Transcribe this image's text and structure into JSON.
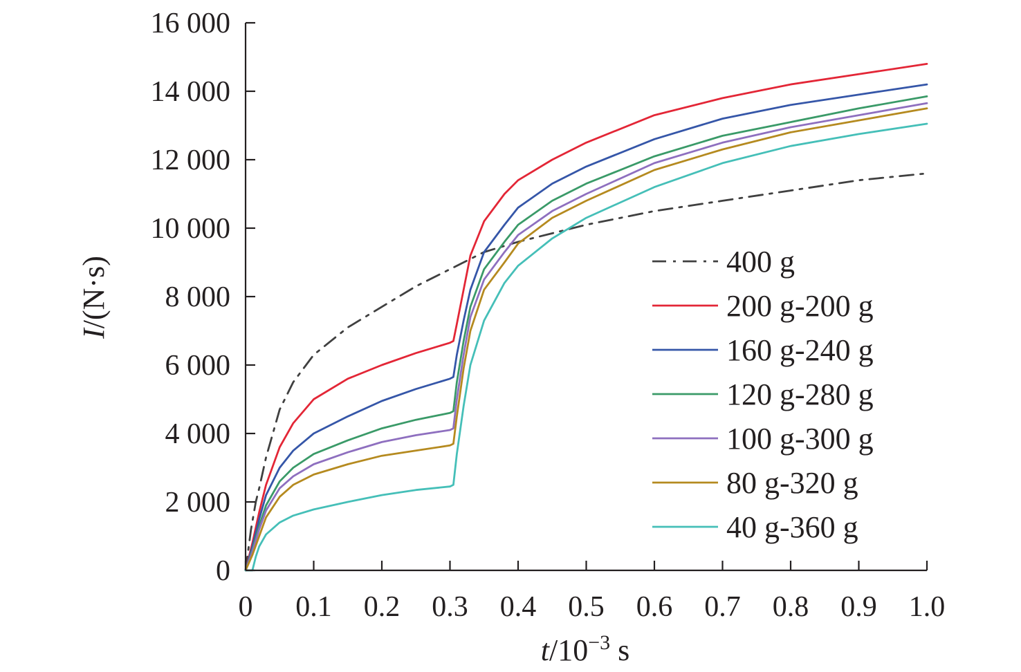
{
  "chart_data": {
    "type": "line",
    "xlabel_prefix": "t",
    "xlabel_rest": "/10",
    "xlabel_exp": "−3",
    "xlabel_unit": " s",
    "ylabel_prefix": "I",
    "ylabel_rest": "/(N·s)",
    "xlim": [
      0,
      1.0
    ],
    "ylim": [
      0,
      16000
    ],
    "x_ticks": [
      0,
      0.1,
      0.2,
      0.3,
      0.4,
      0.5,
      0.6,
      0.7,
      0.8,
      0.9,
      1.0
    ],
    "x_tick_labels": [
      "0",
      "0.1",
      "0.2",
      "0.3",
      "0.4",
      "0.5",
      "0.6",
      "0.7",
      "0.8",
      "0.9",
      "1.0"
    ],
    "y_ticks": [
      0,
      2000,
      4000,
      6000,
      8000,
      10000,
      12000,
      14000,
      16000
    ],
    "y_tick_labels": [
      "0",
      "2 000",
      "4 000",
      "6 000",
      "8 000",
      "10 000",
      "12 000",
      "14 000",
      "16 000"
    ],
    "grid": false,
    "legend_position": "right",
    "series": [
      {
        "name": "400 g",
        "color": "#404040",
        "dash": "dashdot",
        "x": [
          0,
          0.008,
          0.015,
          0.02,
          0.03,
          0.05,
          0.07,
          0.1,
          0.15,
          0.2,
          0.25,
          0.3,
          0.35,
          0.4,
          0.5,
          0.6,
          0.7,
          0.8,
          0.9,
          1.0
        ],
        "y": [
          0,
          1200,
          2000,
          2400,
          3300,
          4700,
          5500,
          6300,
          7100,
          7700,
          8300,
          8800,
          9300,
          9600,
          10100,
          10500,
          10800,
          11100,
          11400,
          11600
        ]
      },
      {
        "name": "200 g-200 g",
        "color": "#e32636",
        "dash": "solid",
        "x": [
          0,
          0.01,
          0.02,
          0.03,
          0.05,
          0.07,
          0.1,
          0.15,
          0.2,
          0.25,
          0.3,
          0.305,
          0.31,
          0.32,
          0.33,
          0.35,
          0.38,
          0.4,
          0.45,
          0.5,
          0.6,
          0.7,
          0.8,
          0.9,
          1.0
        ],
        "y": [
          0,
          800,
          1700,
          2500,
          3600,
          4300,
          5000,
          5600,
          6000,
          6350,
          6650,
          6700,
          7200,
          8200,
          9200,
          10200,
          11000,
          11400,
          12000,
          12500,
          13300,
          13800,
          14200,
          14500,
          14800
        ]
      },
      {
        "name": "160 g-240 g",
        "color": "#3556a8",
        "dash": "solid",
        "x": [
          0,
          0.01,
          0.02,
          0.03,
          0.05,
          0.07,
          0.1,
          0.15,
          0.2,
          0.25,
          0.3,
          0.305,
          0.31,
          0.32,
          0.33,
          0.35,
          0.38,
          0.4,
          0.45,
          0.5,
          0.6,
          0.7,
          0.8,
          0.9,
          1.0
        ],
        "y": [
          0,
          700,
          1500,
          2200,
          3000,
          3500,
          4000,
          4500,
          4950,
          5300,
          5600,
          5650,
          6300,
          7300,
          8200,
          9300,
          10100,
          10600,
          11300,
          11800,
          12600,
          13200,
          13600,
          13900,
          14200
        ]
      },
      {
        "name": "120 g-280 g",
        "color": "#3a9a68",
        "dash": "solid",
        "x": [
          0,
          0.01,
          0.02,
          0.03,
          0.05,
          0.07,
          0.1,
          0.15,
          0.2,
          0.25,
          0.3,
          0.305,
          0.31,
          0.32,
          0.33,
          0.35,
          0.38,
          0.4,
          0.45,
          0.5,
          0.6,
          0.7,
          0.8,
          0.9,
          1.0
        ],
        "y": [
          0,
          600,
          1300,
          1900,
          2600,
          3000,
          3400,
          3800,
          4150,
          4400,
          4600,
          4650,
          5500,
          6700,
          7700,
          8800,
          9600,
          10100,
          10800,
          11300,
          12100,
          12700,
          13100,
          13500,
          13850
        ]
      },
      {
        "name": "100 g-300 g",
        "color": "#8e6fbf",
        "dash": "solid",
        "x": [
          0,
          0.01,
          0.02,
          0.03,
          0.05,
          0.07,
          0.1,
          0.15,
          0.2,
          0.25,
          0.3,
          0.305,
          0.31,
          0.32,
          0.33,
          0.35,
          0.38,
          0.4,
          0.45,
          0.5,
          0.6,
          0.7,
          0.8,
          0.9,
          1.0
        ],
        "y": [
          0,
          550,
          1200,
          1750,
          2400,
          2750,
          3100,
          3450,
          3750,
          3950,
          4100,
          4150,
          5000,
          6300,
          7400,
          8500,
          9300,
          9800,
          10500,
          11000,
          11900,
          12500,
          12950,
          13300,
          13650
        ]
      },
      {
        "name": "80 g-320 g",
        "color": "#b58a1f",
        "dash": "solid",
        "x": [
          0,
          0.01,
          0.02,
          0.03,
          0.05,
          0.07,
          0.1,
          0.15,
          0.2,
          0.25,
          0.3,
          0.305,
          0.31,
          0.32,
          0.33,
          0.35,
          0.38,
          0.4,
          0.45,
          0.5,
          0.6,
          0.7,
          0.8,
          0.9,
          1.0
        ],
        "y": [
          0,
          450,
          1000,
          1550,
          2150,
          2500,
          2800,
          3100,
          3350,
          3500,
          3650,
          3700,
          4500,
          5900,
          7000,
          8200,
          9000,
          9550,
          10300,
          10800,
          11700,
          12300,
          12800,
          13150,
          13500
        ]
      },
      {
        "name": "40 g-360 g",
        "color": "#45bfb8",
        "dash": "solid",
        "x": [
          0,
          0.01,
          0.015,
          0.02,
          0.03,
          0.05,
          0.07,
          0.1,
          0.15,
          0.2,
          0.25,
          0.3,
          0.305,
          0.31,
          0.32,
          0.33,
          0.35,
          0.38,
          0.4,
          0.45,
          0.5,
          0.6,
          0.7,
          0.8,
          0.9,
          1.0
        ],
        "y": [
          0,
          0,
          400,
          700,
          1050,
          1400,
          1600,
          1780,
          2000,
          2200,
          2350,
          2450,
          2500,
          3400,
          4800,
          6000,
          7300,
          8400,
          8900,
          9700,
          10300,
          11200,
          11900,
          12400,
          12750,
          13050
        ]
      }
    ]
  }
}
